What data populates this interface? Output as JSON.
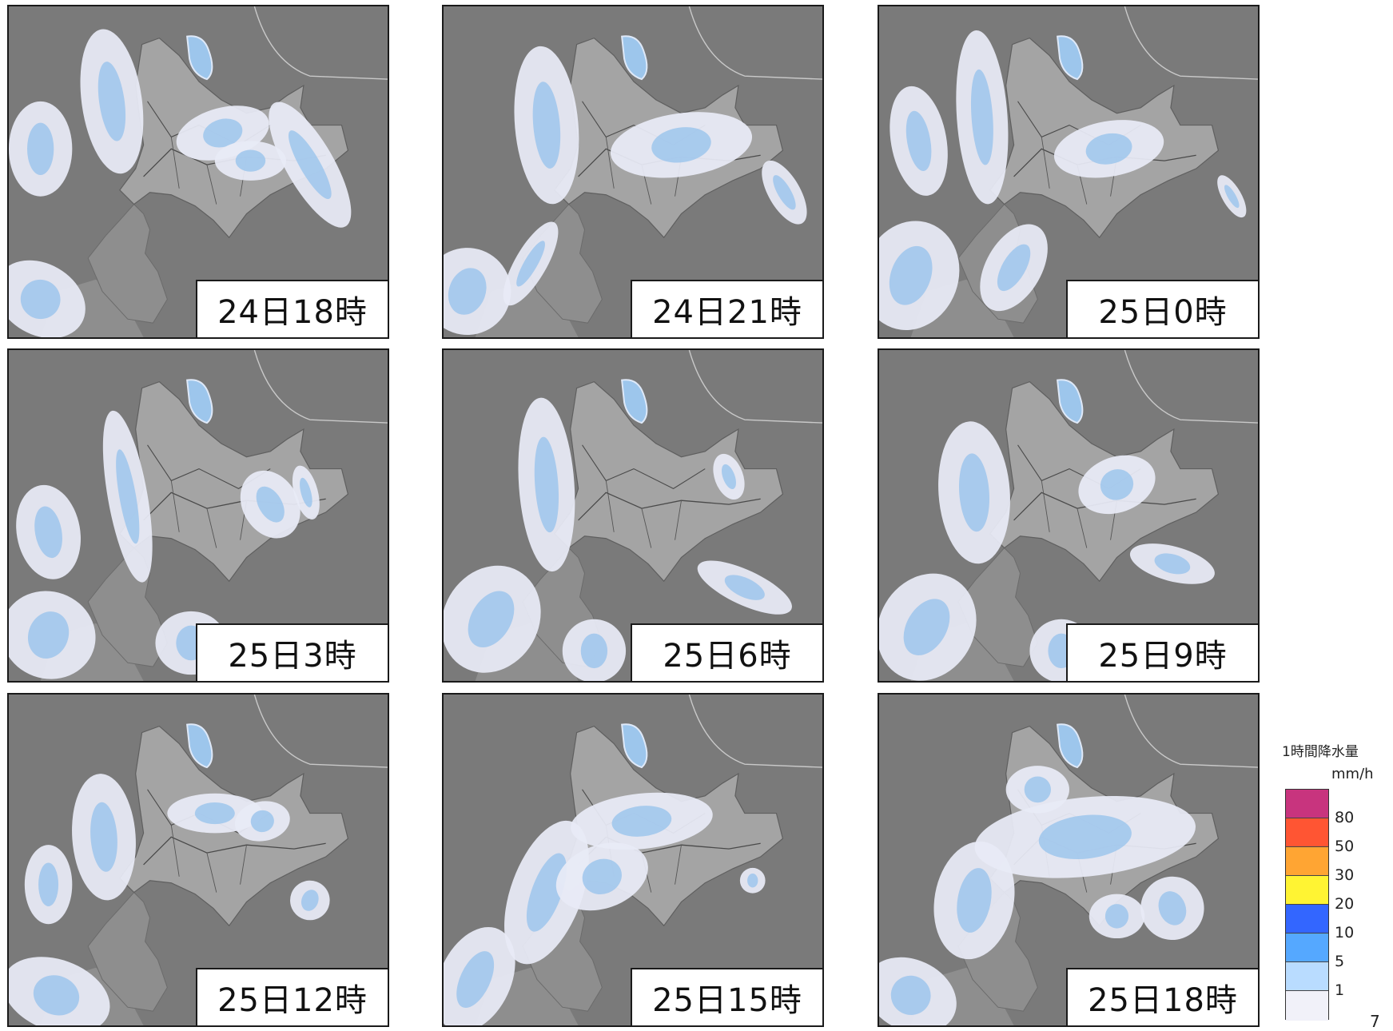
{
  "panels": [
    {
      "label": "24日18時"
    },
    {
      "label": "24日21時"
    },
    {
      "label": "25日0時"
    },
    {
      "label": "25日3時"
    },
    {
      "label": "25日6時"
    },
    {
      "label": "25日9時"
    },
    {
      "label": "25日12時"
    },
    {
      "label": "25日15時"
    },
    {
      "label": "25日18時"
    }
  ],
  "legend": {
    "title": "1時間降水量",
    "unit": "mm/h",
    "ticks": [
      "80",
      "50",
      "30",
      "20",
      "10",
      "5",
      "1"
    ],
    "colors": [
      "#c8347e",
      "#ff5533",
      "#ffa533",
      "#fff433",
      "#3366ff",
      "#55a8ff",
      "#b9dcff",
      "#f1f1f9"
    ]
  },
  "page_number": "7",
  "map_colors": {
    "sea": "#7a7a7a",
    "land_hokkaido": "#a4a4a4",
    "land_other": "#8e8e8e",
    "precip_light": "#e8ebf6",
    "precip_moderate": "#9dc6ec"
  }
}
